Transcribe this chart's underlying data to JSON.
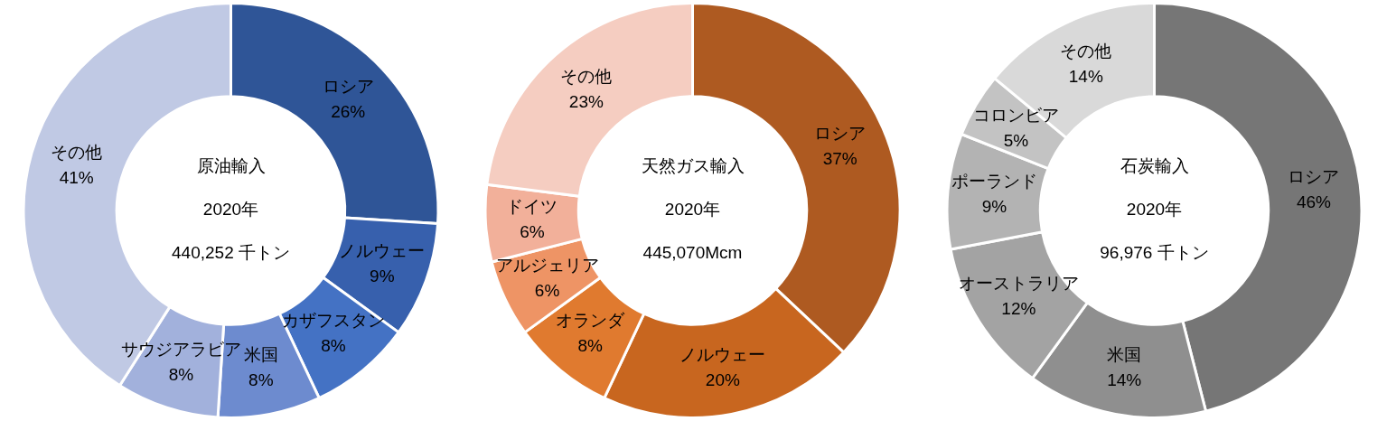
{
  "chart_data": [
    {
      "type": "donut",
      "title": "原油輸入",
      "annotations": [
        "2020年",
        "440,252 千トン"
      ],
      "categories": [
        "ロシア",
        "ノルウェー",
        "カザフスタン",
        "米国",
        "サウジアラビア",
        "その他"
      ],
      "values": [
        26,
        9,
        8,
        8,
        8,
        41
      ],
      "value_labels": [
        "26%",
        "9%",
        "8%",
        "8%",
        "8%",
        "41%"
      ],
      "colors": [
        "#2f5597",
        "#3760ad",
        "#4472c4",
        "#6d8bcf",
        "#a2b1dc",
        "#c0c9e4"
      ],
      "legend": false
    },
    {
      "type": "donut",
      "title": "天然ガス輸入",
      "annotations": [
        "2020年",
        "445,070Mcm"
      ],
      "categories": [
        "ロシア",
        "ノルウェー",
        "オランダ",
        "アルジェリア",
        "ドイツ",
        "その他"
      ],
      "values": [
        37,
        20,
        8,
        6,
        6,
        23
      ],
      "value_labels": [
        "37%",
        "20%",
        "8%",
        "6%",
        "6%",
        "23%"
      ],
      "colors": [
        "#ae5a21",
        "#c8661f",
        "#e07a2f",
        "#ee9465",
        "#f2b09a",
        "#f5cdc1"
      ],
      "legend": false
    },
    {
      "type": "donut",
      "title": "石炭輸入",
      "annotations": [
        "2020年",
        "96,976 千トン"
      ],
      "categories": [
        "ロシア",
        "米国",
        "オーストラリア",
        "ポーランド",
        "コロンビア",
        "その他"
      ],
      "values": [
        46,
        14,
        12,
        9,
        5,
        14
      ],
      "value_labels": [
        "46%",
        "14%",
        "12%",
        "9%",
        "5%",
        "14%"
      ],
      "colors": [
        "#767676",
        "#8f8f8f",
        "#a3a3a3",
        "#b3b3b3",
        "#c3c3c3",
        "#d9d9d9"
      ],
      "legend": false
    }
  ]
}
